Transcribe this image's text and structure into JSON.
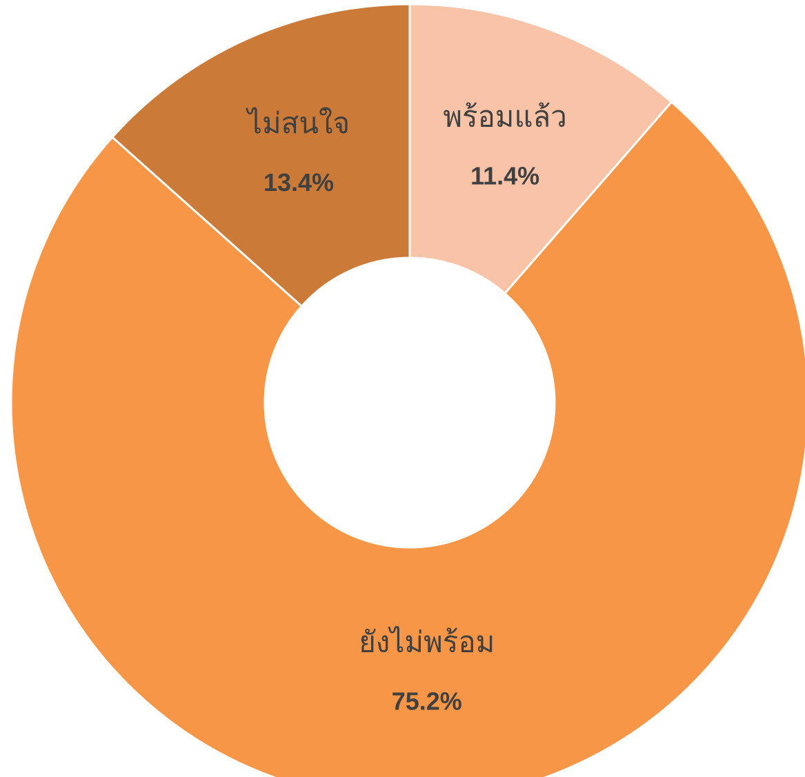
{
  "chart_data": {
    "type": "donut",
    "categories": [
      "พร้อมแล้ว",
      "ยังไม่พร้อม",
      "ไม่สนใจ"
    ],
    "values": [
      11.4,
      75.2,
      13.4
    ],
    "value_labels": [
      "11.4%",
      "75.2%",
      "13.4%"
    ],
    "colors": [
      "#F9C3A8",
      "#F79646",
      "#CC7A38"
    ]
  }
}
